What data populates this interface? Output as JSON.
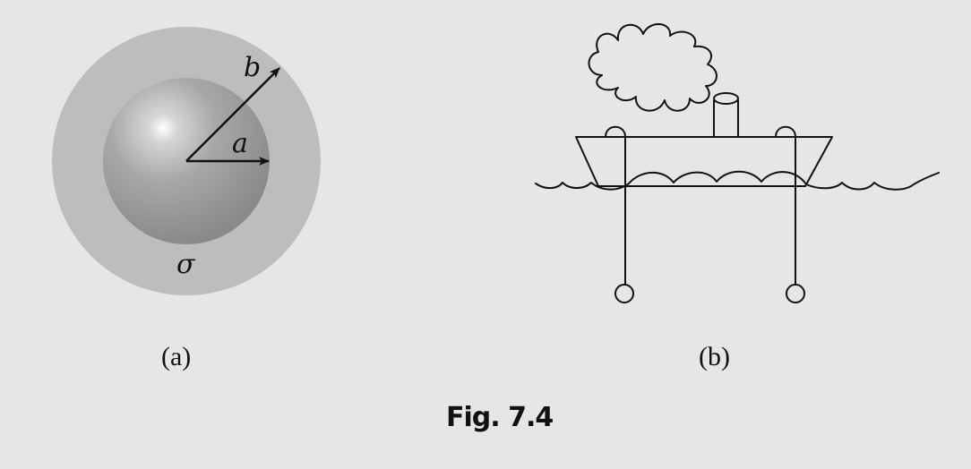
{
  "panel_a": {
    "outer_radius_label": "b",
    "inner_radius_label": "a",
    "conductivity_label": "σ",
    "sublabel": "(a)"
  },
  "panel_b": {
    "sublabel": "(b)"
  },
  "caption": "Fig. 7.4",
  "colors": {
    "background": "#e6e6e6",
    "outer_shell": "#bdbdbd",
    "inner_sphere_dark": "#8f8f8f",
    "inner_sphere_highlight": "#ffffff",
    "ink": "#111111"
  }
}
